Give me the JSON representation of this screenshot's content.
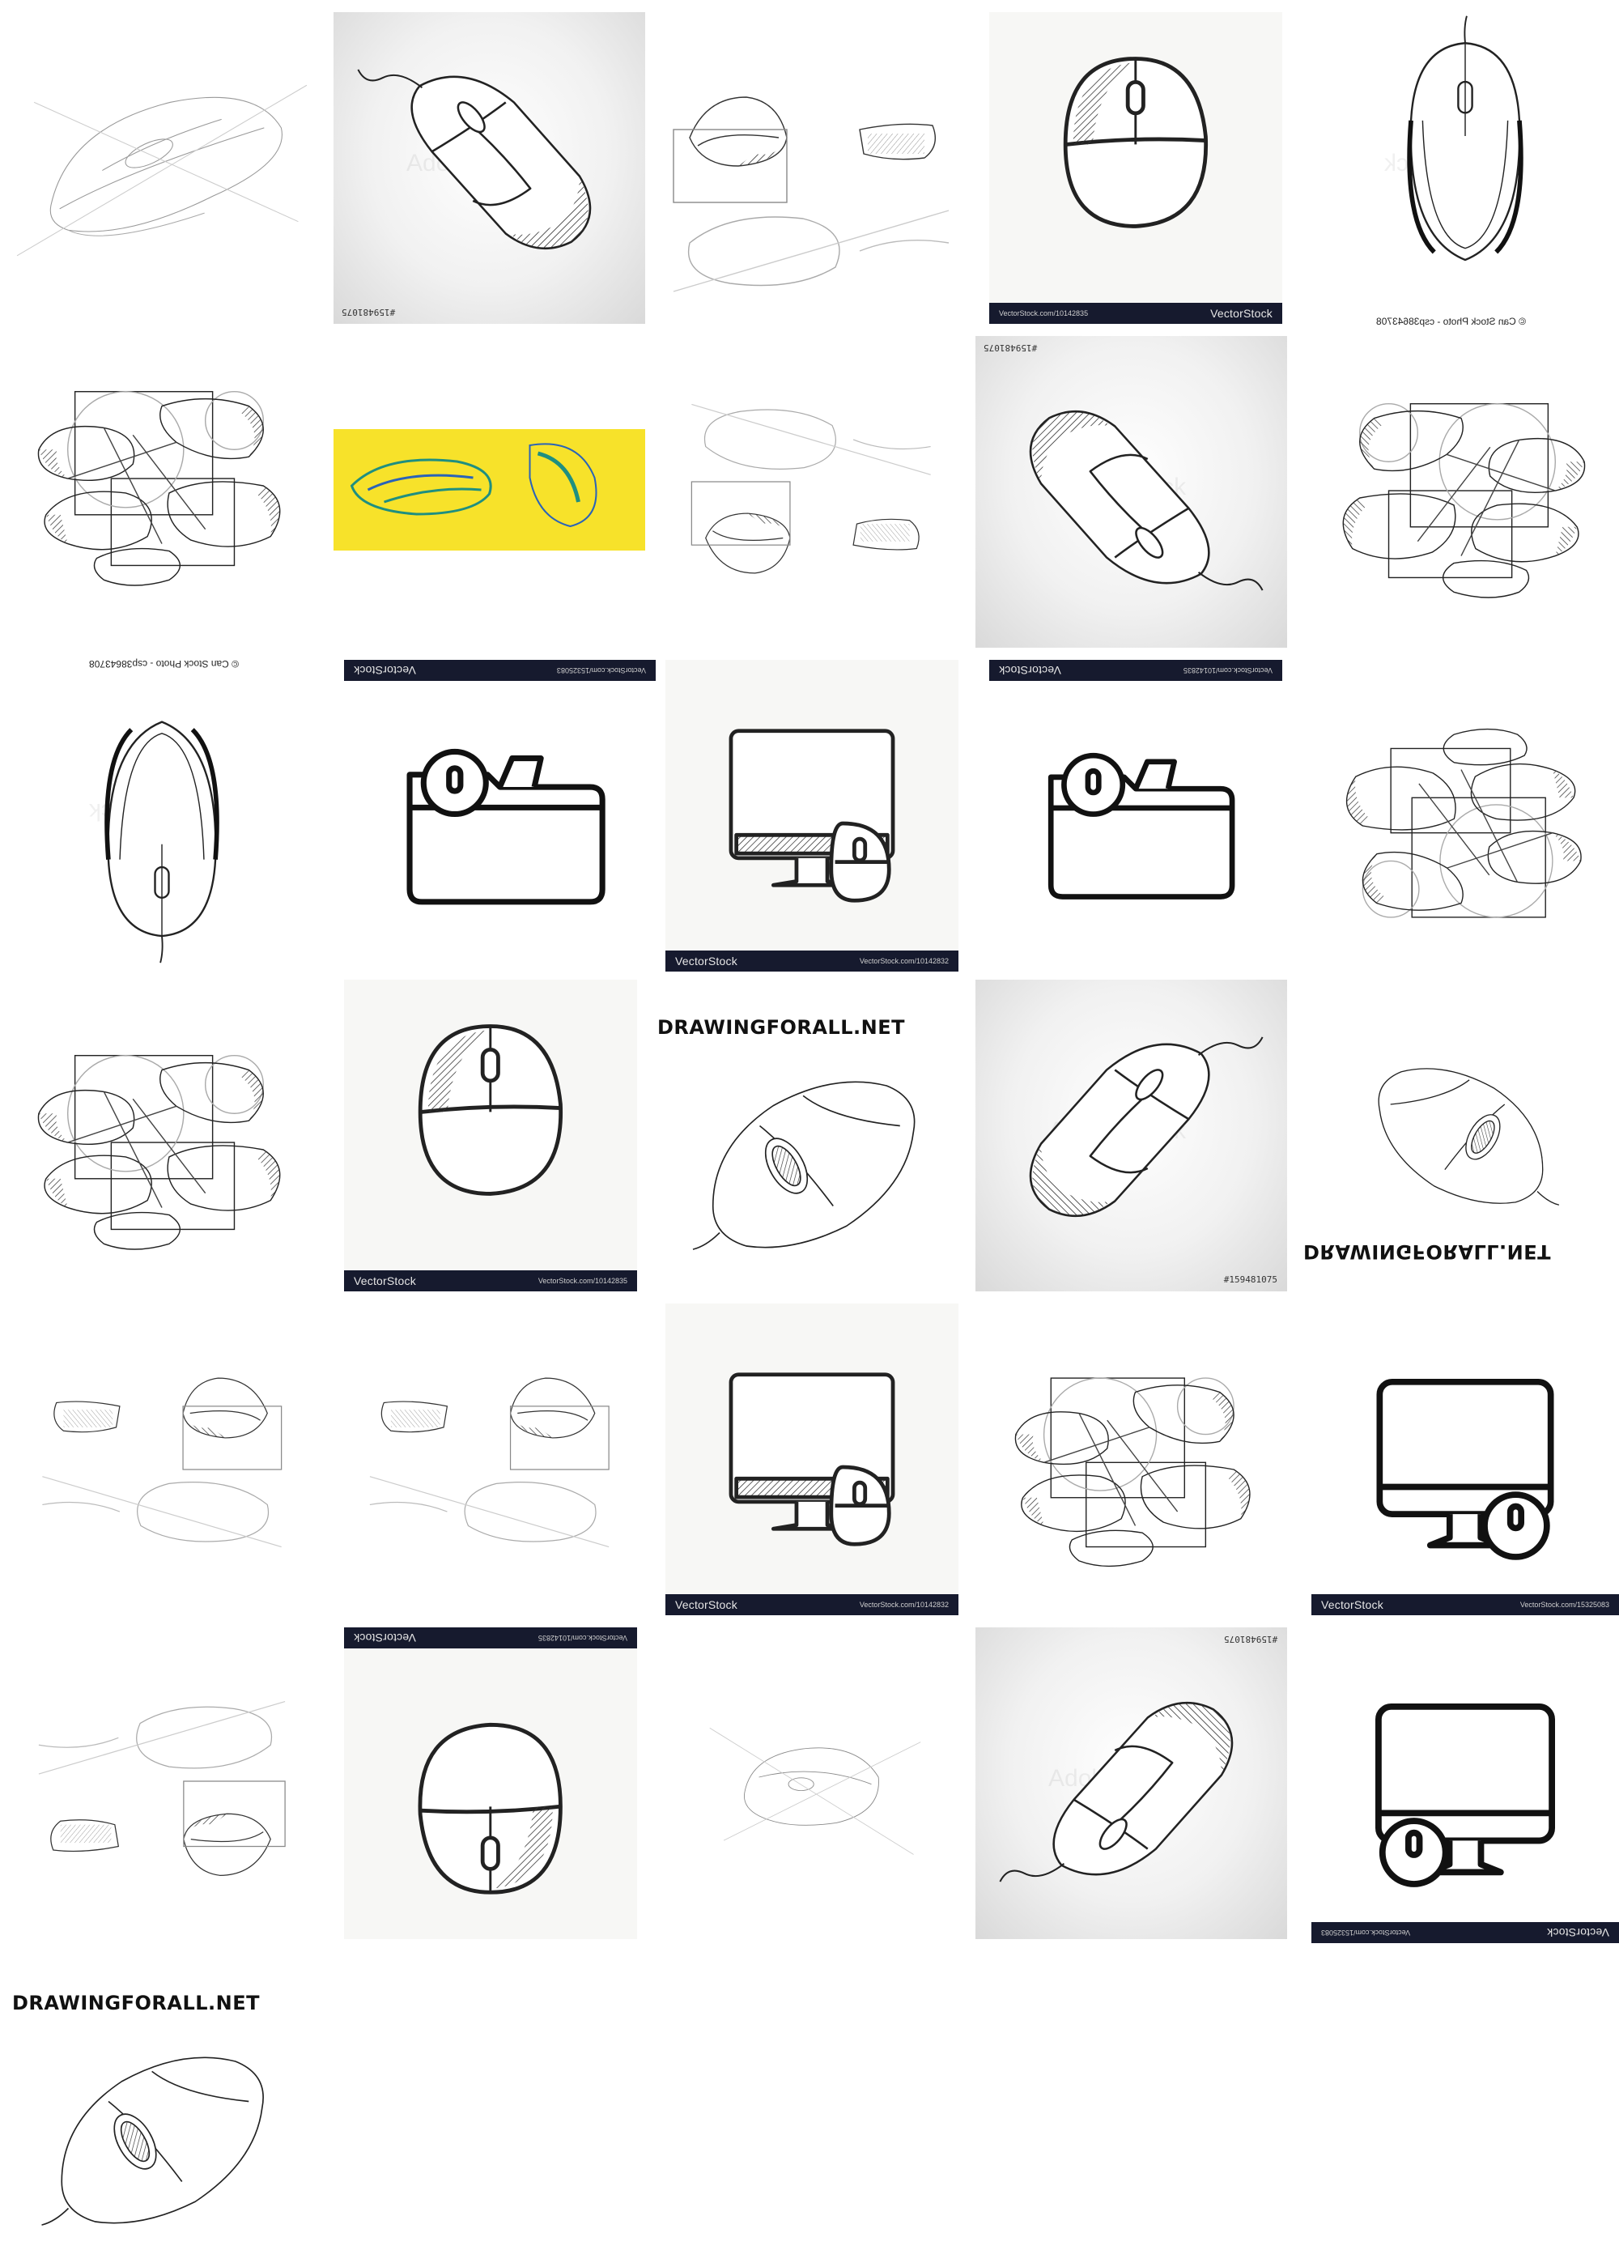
{
  "tiles": {
    "vectorstock_brand": "VectorStock",
    "vectorstock_reg": "®",
    "url_10142835": "VectorStock.com/10142835",
    "url_10142832": "VectorStock.com/10142832",
    "url_15325083": "VectorStock.com/15325083",
    "code_159481075": "#159481075",
    "canstock_caption": "© Can Stock Photo - csp38643708",
    "canstock_watermark": "canStock",
    "drawingforall": "DRAWINGFORALL.NET",
    "adobe_watermark": "Adobe Stock"
  },
  "colors": {
    "vectorstock_bar": "#161a2e",
    "yellow_bg": "#f7e22a",
    "sketch_teal": "#1f8f80",
    "sketch_blue": "#2a63b8",
    "ink": "#222222"
  }
}
